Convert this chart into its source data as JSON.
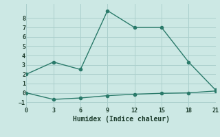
{
  "line1_x": [
    0,
    3,
    6,
    9,
    12,
    15,
    18,
    21
  ],
  "line1_y": [
    2.0,
    3.3,
    2.5,
    8.8,
    7.0,
    7.0,
    3.3,
    0.3
  ],
  "line2_x": [
    0,
    3,
    6,
    9,
    12,
    15,
    18,
    21
  ],
  "line2_y": [
    0.0,
    -0.7,
    -0.55,
    -0.3,
    -0.15,
    -0.05,
    0.0,
    0.2
  ],
  "line_color": "#2a7a6a",
  "bg_color": "#cce8e4",
  "grid_color": "#aacfcc",
  "xlabel": "Humidex (Indice chaleur)",
  "xlim": [
    0,
    21
  ],
  "ylim": [
    -1.5,
    9.5
  ],
  "xticks": [
    0,
    3,
    6,
    9,
    12,
    15,
    18,
    21
  ],
  "yticks": [
    -1,
    0,
    1,
    2,
    3,
    4,
    5,
    6,
    7,
    8
  ],
  "font_color": "#1a3a2a",
  "markersize": 3,
  "linewidth": 1.0
}
